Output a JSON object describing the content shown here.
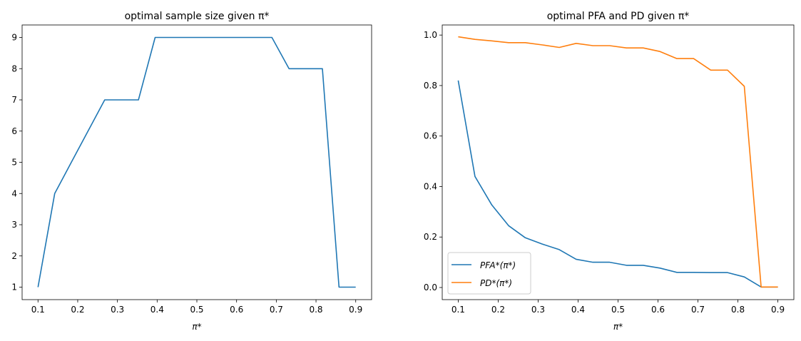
{
  "chart_data": [
    {
      "type": "line",
      "title": "optimal sample size given π*",
      "xlabel": "π*",
      "ylabel": "",
      "xlim": [
        0.06,
        0.94
      ],
      "ylim": [
        0.6,
        9.4
      ],
      "xticks": [
        0.1,
        0.2,
        0.3,
        0.4,
        0.5,
        0.6,
        0.7,
        0.8,
        0.9
      ],
      "yticks": [
        1,
        2,
        3,
        4,
        5,
        6,
        7,
        8,
        9
      ],
      "grid": false,
      "x": [
        0.1,
        0.142,
        0.184,
        0.226,
        0.268,
        0.311,
        0.353,
        0.395,
        0.437,
        0.479,
        0.521,
        0.563,
        0.605,
        0.647,
        0.689,
        0.732,
        0.774,
        0.816,
        0.858,
        0.9
      ],
      "series": [
        {
          "color": "#1f77b4",
          "values": [
            1,
            4,
            5,
            6,
            7,
            7,
            7,
            9,
            9,
            9,
            9,
            9,
            9,
            9,
            9,
            8,
            8,
            8,
            1,
            1
          ]
        }
      ]
    },
    {
      "type": "line",
      "title": "optimal PFA and PD given π*",
      "xlabel": "π*",
      "ylabel": "",
      "xlim": [
        0.06,
        0.94
      ],
      "ylim": [
        -0.048,
        1.04
      ],
      "xticks": [
        0.1,
        0.2,
        0.3,
        0.4,
        0.5,
        0.6,
        0.7,
        0.8,
        0.9
      ],
      "yticks": [
        0.0,
        0.2,
        0.4,
        0.6,
        0.8,
        1.0
      ],
      "grid": false,
      "legend": "lower-left",
      "x": [
        0.1,
        0.142,
        0.184,
        0.226,
        0.268,
        0.311,
        0.353,
        0.395,
        0.437,
        0.479,
        0.521,
        0.563,
        0.605,
        0.647,
        0.689,
        0.732,
        0.774,
        0.816,
        0.858,
        0.9
      ],
      "series": [
        {
          "name": "PFA*(π*)",
          "color": "#1f77b4",
          "values": [
            0.82,
            0.44,
            0.327,
            0.245,
            0.197,
            0.172,
            0.15,
            0.112,
            0.1,
            0.1,
            0.088,
            0.088,
            0.077,
            0.06,
            0.06,
            0.059,
            0.059,
            0.042,
            0.002,
            0.002
          ]
        },
        {
          "name": "PD*(π*)",
          "color": "#ff7f0e",
          "values": [
            0.993,
            0.983,
            0.977,
            0.97,
            0.97,
            0.961,
            0.951,
            0.967,
            0.958,
            0.958,
            0.949,
            0.949,
            0.935,
            0.907,
            0.907,
            0.861,
            0.861,
            0.797,
            0.002,
            0.002
          ]
        }
      ]
    }
  ]
}
